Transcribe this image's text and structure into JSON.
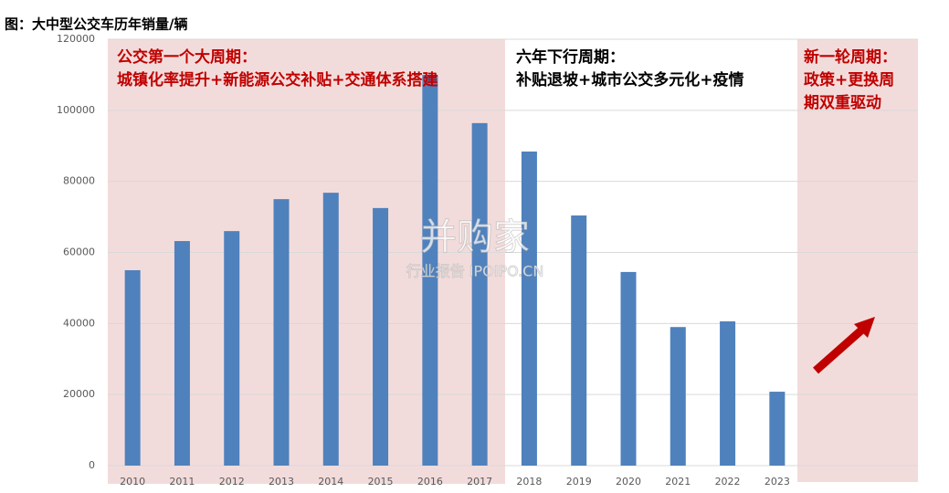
{
  "chart_data": {
    "type": "bar",
    "title": "图：大中型公交车历年销量/辆",
    "categories": [
      "2010",
      "2011",
      "2012",
      "2013",
      "2014",
      "2015",
      "2016",
      "2017",
      "2018",
      "2019",
      "2020",
      "2021",
      "2022",
      "2023"
    ],
    "values": [
      55000,
      63200,
      66000,
      75000,
      76800,
      72500,
      110000,
      96400,
      88400,
      70400,
      54500,
      39000,
      40600,
      20800
    ],
    "color": "#4f81bd",
    "ylim": [
      0,
      120000
    ],
    "yticks": [
      0,
      20000,
      40000,
      60000,
      80000,
      100000,
      120000
    ],
    "grid": true,
    "annotations": [
      {
        "lines": [
          "公交第一个大周期：",
          "城镇化率提升+新能源公交补贴+交通体系搭建"
        ],
        "color": "#c00000"
      },
      {
        "lines": [
          "六年下行周期：",
          "补贴退坡+城市公交多元化+疫情"
        ],
        "color": "#000000"
      },
      {
        "lines": [
          "新一轮周期：",
          "政策+更换周",
          "期双重驱动"
        ],
        "color": "#c00000"
      }
    ],
    "watermark": [
      "并购家",
      "行业报告 IPOIPO.CN"
    ]
  }
}
